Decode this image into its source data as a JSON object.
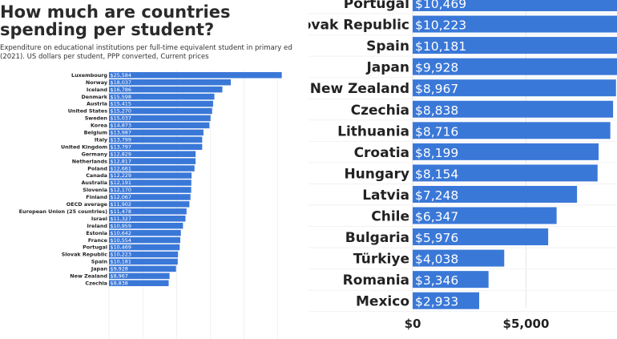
{
  "header": {
    "title": "How much are countries spending per student?",
    "subtitle": "Expenditure on educational institutions per full-time equivalent student in primary ed\n(2021). US dollars per student, PPP converted, Current prices"
  },
  "colors": {
    "bar": "#3a78d8",
    "grid": "#e6e6e6",
    "text": "#222222",
    "value_text": "#ffffff"
  },
  "chart_data": [
    {
      "type": "bar",
      "orientation": "horizontal",
      "title": "How much are countries spending per student?",
      "subtitle": "Expenditure on educational institutions per full-time equivalent student in primary ed (2021). US dollars per student, PPP converted, Current prices",
      "categories": [
        "Luxembourg",
        "Norway",
        "Iceland",
        "Denmark",
        "Austria",
        "United States",
        "Sweden",
        "Korea",
        "Belgium",
        "Italy",
        "United Kingdom",
        "Germany",
        "Netherlands",
        "Poland",
        "Canada",
        "Australia",
        "Slovenia",
        "Finland",
        "OECD average",
        "European Union (25 countries)",
        "Israel",
        "Ireland",
        "Estonia",
        "France",
        "Portugal",
        "Slovak Republic",
        "Spain",
        "Japan",
        "New Zealand",
        "Czechia"
      ],
      "values": [
        25584,
        18037,
        16786,
        15598,
        15415,
        15270,
        15037,
        14873,
        13987,
        13799,
        13797,
        12829,
        12817,
        12661,
        12229,
        12191,
        12170,
        12067,
        11902,
        11478,
        11327,
        10959,
        10642,
        10554,
        10469,
        10223,
        10181,
        9928,
        8967,
        8838
      ],
      "labels": [
        "$25,584",
        "$18,037",
        "$16,786",
        "$15,598",
        "$15,415",
        "$15,270",
        "$15,037",
        "$14,873",
        "$13,987",
        "$13,799",
        "$13,797",
        "$12,829",
        "$12,817",
        "$12,661",
        "$12,229",
        "$12,191",
        "$12,170",
        "$12,067",
        "$11,902",
        "$11,478",
        "$11,327",
        "$10,959",
        "$10,642",
        "$10,554",
        "$10,469",
        "$10,223",
        "$10,181",
        "$9,928",
        "$8,967",
        "$8,838"
      ]
    },
    {
      "type": "bar",
      "orientation": "horizontal",
      "categories": [
        "Portugal",
        "Slovak Republic",
        "Spain",
        "Japan",
        "New Zealand",
        "Czechia",
        "Lithuania",
        "Croatia",
        "Hungary",
        "Latvia",
        "Chile",
        "Bulgaria",
        "Türkiye",
        "Romania",
        "Mexico"
      ],
      "values": [
        10469,
        10223,
        10181,
        9928,
        8967,
        8838,
        8716,
        8199,
        8154,
        7248,
        6347,
        5976,
        4038,
        3346,
        2933
      ],
      "labels": [
        "$10,469",
        "$10,223",
        "$10,181",
        "$9,928",
        "$8,967",
        "$8,838",
        "$8,716",
        "$8,199",
        "$8,154",
        "$7,248",
        "$6,347",
        "$5,976",
        "$4,038",
        "$3,346",
        "$2,933"
      ],
      "x_ticks": [
        0,
        5000
      ],
      "x_tick_labels": [
        "$0",
        "$5,000"
      ],
      "grid": true
    }
  ]
}
